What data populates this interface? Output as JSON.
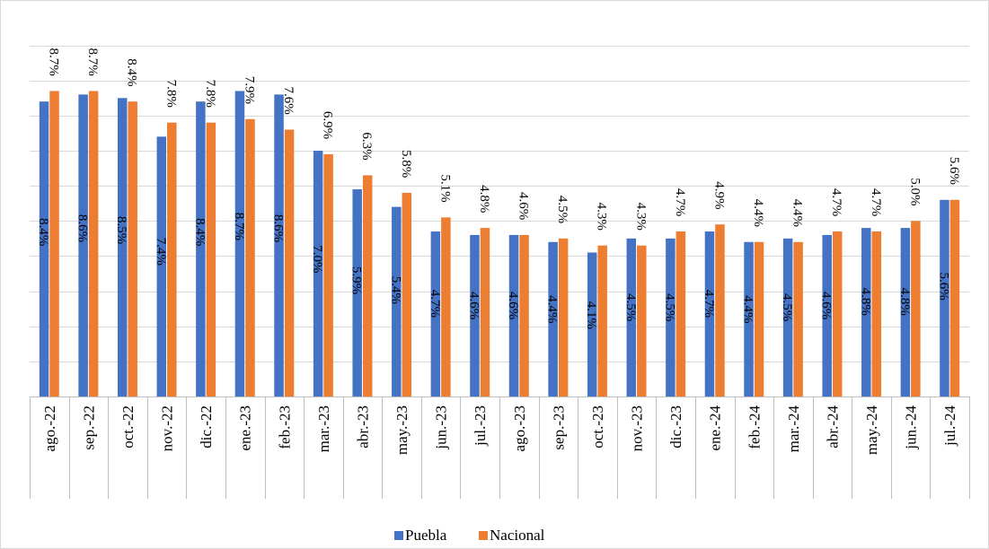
{
  "chart_data": {
    "type": "bar",
    "title": "",
    "xlabel": "",
    "ylabel": "",
    "ylim": [
      0,
      10.5
    ],
    "grid": true,
    "legend_position": "bottom",
    "categories": [
      "ago.-22",
      "sep.-22",
      "oct.-22",
      "nov.-22",
      "dic.-22",
      "ene.-23",
      "feb.-23",
      "mar.-23",
      "abr.-23",
      "may.-23",
      "jun.-23",
      "jul.-23",
      "ago.-23",
      "sep.-23",
      "oct.-23",
      "nov.-23",
      "dic.-23",
      "ene.-24",
      "feb.-24",
      "mar.-24",
      "abr.-24",
      "may.-24",
      "jun.-24",
      "jul.-24"
    ],
    "series": [
      {
        "name": "Puebla",
        "color": "#4472C4",
        "values": [
          8.4,
          8.6,
          8.5,
          7.4,
          8.4,
          8.7,
          8.6,
          7.0,
          5.9,
          5.4,
          4.7,
          4.6,
          4.6,
          4.4,
          4.1,
          4.5,
          4.5,
          4.7,
          4.4,
          4.5,
          4.6,
          4.8,
          4.8,
          5.6
        ],
        "labels": [
          "8.4%",
          "8.6%",
          "8.5%",
          "7.4%",
          "8.4%",
          "8.7%",
          "8.6%",
          "7.0%",
          "5.9%",
          "5.4%",
          "4.7%",
          "4.6%",
          "4.6%",
          "4.4%",
          "4.1%",
          "4.5%",
          "4.5%",
          "4.7%",
          "4.4%",
          "4.5%",
          "4.6%",
          "4.8%",
          "4.8%",
          "5.6%"
        ]
      },
      {
        "name": "Nacional",
        "color": "#ED7D31",
        "values": [
          8.7,
          8.7,
          8.4,
          7.8,
          7.8,
          7.9,
          7.6,
          6.9,
          6.3,
          5.8,
          5.1,
          4.8,
          4.6,
          4.5,
          4.3,
          4.3,
          4.7,
          4.9,
          4.4,
          4.4,
          4.7,
          4.7,
          5.0,
          5.6
        ],
        "labels": [
          "8.7%",
          "8.7%",
          "8.4%",
          "7.8%",
          "7.8%",
          "7.9%",
          "7.6%",
          "6.9%",
          "6.3%",
          "5.8%",
          "5.1%",
          "4.8%",
          "4.6%",
          "4.5%",
          "4.3%",
          "4.3%",
          "4.7%",
          "4.9%",
          "4.4%",
          "4.4%",
          "4.7%",
          "4.7%",
          "5.0%",
          "5.6%"
        ]
      }
    ]
  }
}
